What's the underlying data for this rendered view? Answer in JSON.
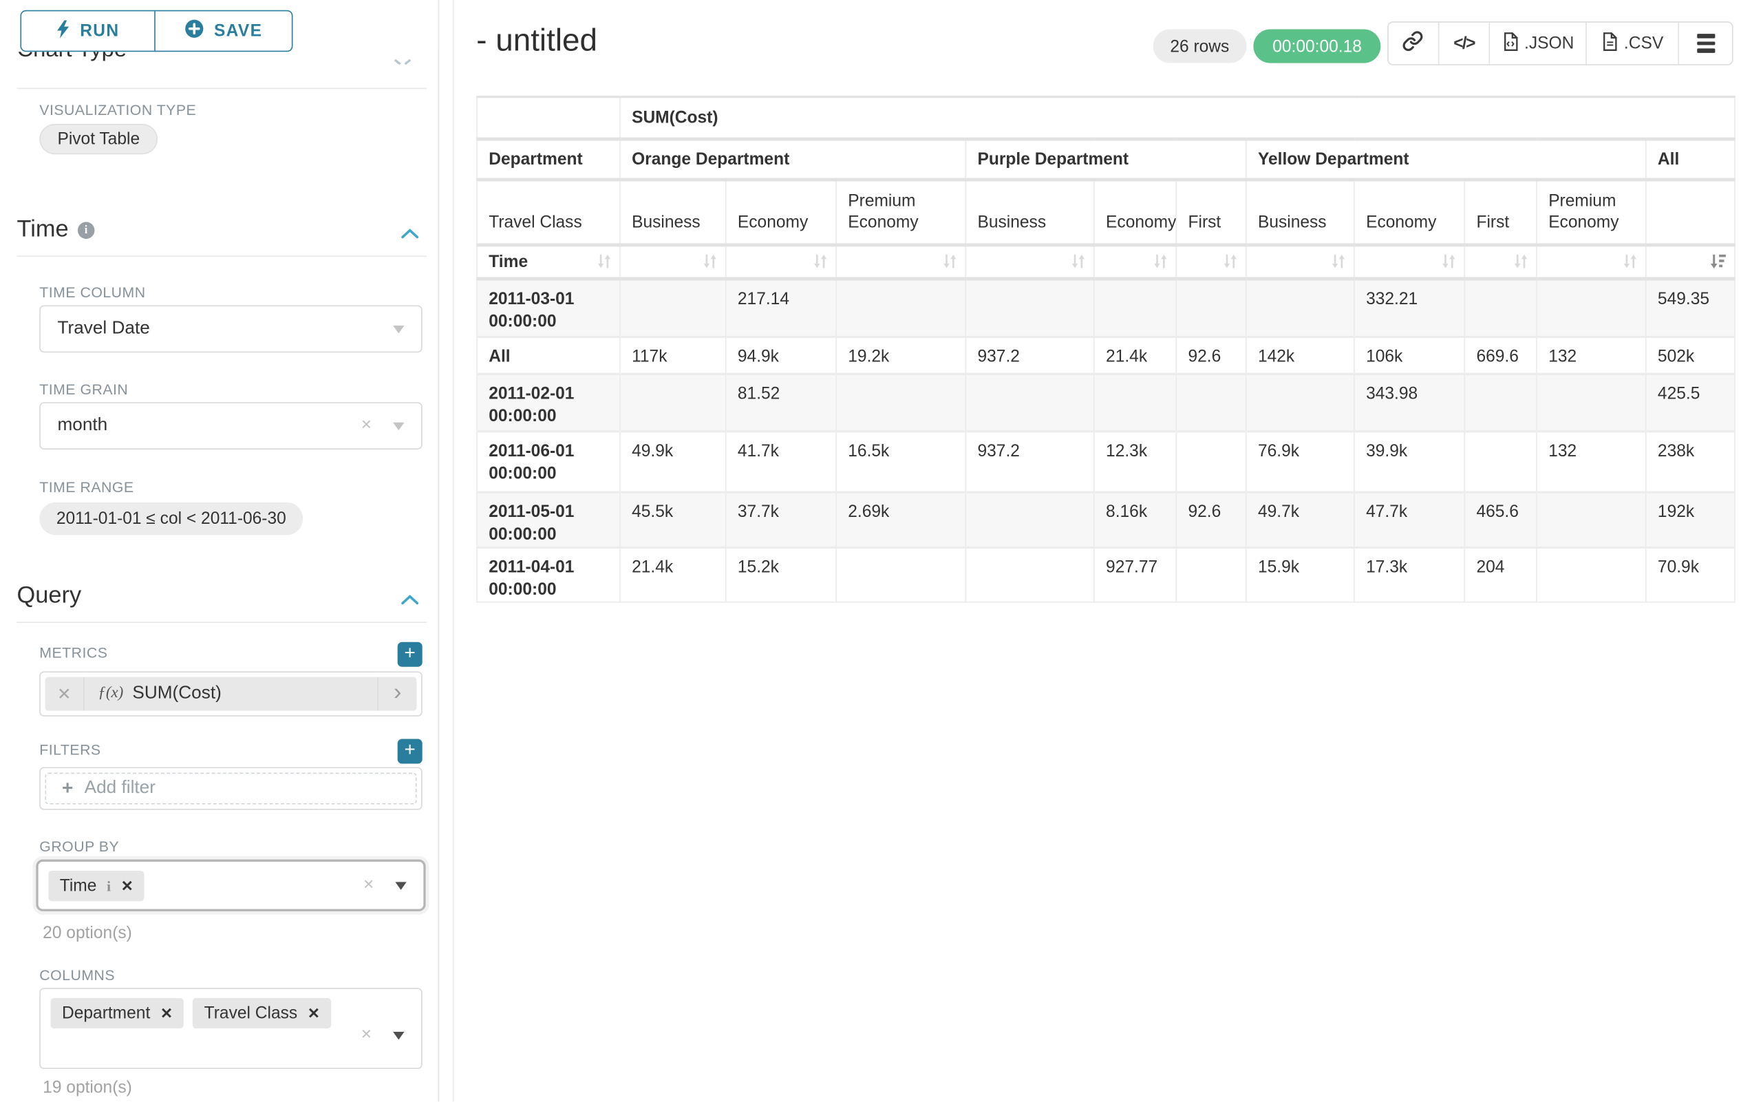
{
  "colors": {
    "accent_teal": "#2a7e9d",
    "accent_blue": "#3fa8c9",
    "success_green": "#5ac189",
    "pill_gray": "#ececec"
  },
  "sidebar": {
    "run_label": "RUN",
    "save_label": "SAVE",
    "scrolled_heading": "Chart Type",
    "visualization": {
      "label": "VISUALIZATION TYPE",
      "value": "Pivot Table"
    },
    "time": {
      "heading": "Time",
      "time_column": {
        "label": "TIME COLUMN",
        "value": "Travel Date"
      },
      "time_grain": {
        "label": "TIME GRAIN",
        "value": "month"
      },
      "time_range": {
        "label": "TIME RANGE",
        "value": "2011-01-01 ≤ col < 2011-06-30"
      }
    },
    "query": {
      "heading": "Query",
      "metrics": {
        "label": "METRICS",
        "fx": "ƒ(x)",
        "value": "SUM(Cost)"
      },
      "filters": {
        "label": "FILTERS",
        "placeholder": "Add filter"
      },
      "group_by": {
        "label": "GROUP BY",
        "tags": [
          "Time"
        ],
        "options_hint": "20 option(s)"
      },
      "columns": {
        "label": "COLUMNS",
        "tags": [
          "Department",
          "Travel Class"
        ],
        "options_hint": "19 option(s)"
      }
    }
  },
  "header": {
    "title": "- untitled",
    "row_count": "26 rows",
    "timer": "00:00:00.18",
    "json_label": ".JSON",
    "csv_label": ".CSV",
    "icons": [
      "link-icon",
      "code-icon",
      "json-file-icon",
      "csv-file-icon",
      "menu-icon"
    ]
  },
  "chart_data": {
    "type": "table",
    "metric_header": "SUM(Cost)",
    "row_header": "Department",
    "row_subheader": "Travel Class",
    "time_header": "Time",
    "column_groups": [
      {
        "label": "Orange Department",
        "columns": [
          "Business",
          "Economy",
          "Premium Economy"
        ]
      },
      {
        "label": "Purple Department",
        "columns": [
          "Business",
          "Economy",
          "First"
        ]
      },
      {
        "label": "Yellow Department",
        "columns": [
          "Business",
          "Economy",
          "First",
          "Premium Economy"
        ]
      },
      {
        "label": "All",
        "columns": [
          ""
        ]
      }
    ],
    "sort": {
      "active_column_index": 10,
      "direction": "desc"
    },
    "rows": [
      {
        "label": "2011-03-01 00:00:00",
        "values": [
          "",
          "217.14",
          "",
          "",
          "",
          "",
          "",
          "332.21",
          "",
          "",
          "549.35"
        ]
      },
      {
        "label": "All",
        "values": [
          "117k",
          "94.9k",
          "19.2k",
          "937.2",
          "21.4k",
          "92.6",
          "142k",
          "106k",
          "669.6",
          "132",
          "502k"
        ]
      },
      {
        "label": "2011-02-01 00:00:00",
        "values": [
          "",
          "81.52",
          "",
          "",
          "",
          "",
          "",
          "343.98",
          "",
          "",
          "425.5"
        ]
      },
      {
        "label": "2011-06-01 00:00:00",
        "values": [
          "49.9k",
          "41.7k",
          "16.5k",
          "937.2",
          "12.3k",
          "",
          "76.9k",
          "39.9k",
          "",
          "132",
          "238k"
        ]
      },
      {
        "label": "2011-05-01 00:00:00",
        "values": [
          "45.5k",
          "37.7k",
          "2.69k",
          "",
          "8.16k",
          "92.6",
          "49.7k",
          "47.7k",
          "465.6",
          "",
          "192k"
        ]
      },
      {
        "label": "2011-04-01 00:00:00",
        "values": [
          "21.4k",
          "15.2k",
          "",
          "",
          "927.77",
          "",
          "15.9k",
          "17.3k",
          "204",
          "",
          "70.9k"
        ]
      }
    ]
  }
}
